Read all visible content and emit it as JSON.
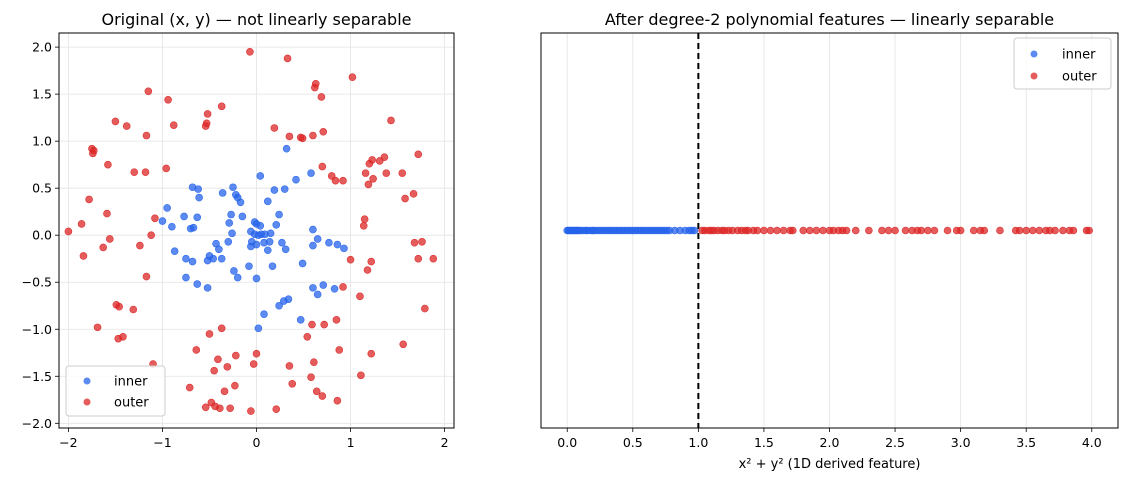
{
  "colors": {
    "inner": "#2563eb",
    "outer": "#dc2626"
  },
  "chart_data": [
    {
      "type": "scatter",
      "title": "Original (x, y) — not linearly separable",
      "xlabel": "",
      "ylabel": "",
      "xlim": [
        -2.1,
        2.1
      ],
      "ylim": [
        -2.05,
        2.15
      ],
      "xticks": [
        -2,
        -1,
        0,
        1,
        2
      ],
      "xtick_labels": [
        "−2",
        "−1",
        "0",
        "1",
        "2"
      ],
      "yticks": [
        -2.0,
        -1.5,
        -1.0,
        -0.5,
        0.0,
        0.5,
        1.0,
        1.5,
        2.0
      ],
      "ytick_labels": [
        "−2.0",
        "−1.5",
        "−1.0",
        "−0.5",
        "0.0",
        "0.5",
        "1.0",
        "1.5",
        "2.0"
      ],
      "grid": true,
      "legend_position": "lower-left",
      "series": [
        {
          "name": "inner",
          "color_key": "inner",
          "points": [
            [
              0.32,
              0.92
            ],
            [
              0.58,
              0.66
            ],
            [
              0.04,
              0.63
            ],
            [
              0.42,
              0.59
            ],
            [
              -0.68,
              0.51
            ],
            [
              -0.62,
              0.49
            ],
            [
              -0.25,
              0.51
            ],
            [
              0.19,
              0.48
            ],
            [
              0.3,
              0.49
            ],
            [
              -0.36,
              0.45
            ],
            [
              -0.22,
              0.43
            ],
            [
              -0.2,
              0.4
            ],
            [
              -0.61,
              0.4
            ],
            [
              -0.17,
              0.35
            ],
            [
              0.12,
              0.36
            ],
            [
              -0.95,
              0.29
            ],
            [
              -0.77,
              0.2
            ],
            [
              -0.63,
              0.19
            ],
            [
              -0.27,
              0.22
            ],
            [
              -0.15,
              0.2
            ],
            [
              0.24,
              0.22
            ],
            [
              -1.0,
              0.15
            ],
            [
              -0.9,
              0.09
            ],
            [
              -0.7,
              0.07
            ],
            [
              -0.67,
              0.08
            ],
            [
              -0.29,
              0.13
            ],
            [
              -0.02,
              0.14
            ],
            [
              0.0,
              0.12
            ],
            [
              0.04,
              0.1
            ],
            [
              0.21,
              0.11
            ],
            [
              0.6,
              0.06
            ],
            [
              -0.26,
              0.02
            ],
            [
              -0.06,
              0.04
            ],
            [
              -0.02,
              0.01
            ],
            [
              0.02,
              0.0
            ],
            [
              0.05,
              0.01
            ],
            [
              0.09,
              0.01
            ],
            [
              0.15,
              0.02
            ],
            [
              0.65,
              -0.04
            ],
            [
              0.77,
              -0.08
            ],
            [
              -0.43,
              -0.09
            ],
            [
              -0.3,
              -0.07
            ],
            [
              -0.05,
              -0.07
            ],
            [
              0.0,
              -0.1
            ],
            [
              0.08,
              -0.08
            ],
            [
              0.14,
              -0.07
            ],
            [
              0.27,
              -0.08
            ],
            [
              0.6,
              -0.11
            ],
            [
              0.86,
              -0.1
            ],
            [
              0.93,
              -0.14
            ],
            [
              -0.87,
              -0.17
            ],
            [
              -0.4,
              -0.15
            ],
            [
              -0.06,
              -0.12
            ],
            [
              0.12,
              -0.16
            ],
            [
              0.31,
              -0.15
            ],
            [
              -0.5,
              -0.22
            ],
            [
              -0.75,
              -0.25
            ],
            [
              -0.68,
              -0.28
            ],
            [
              -0.52,
              -0.27
            ],
            [
              -0.46,
              -0.25
            ],
            [
              -0.37,
              -0.25
            ],
            [
              0.49,
              -0.3
            ],
            [
              -0.24,
              -0.38
            ],
            [
              -0.08,
              -0.33
            ],
            [
              0.17,
              -0.33
            ],
            [
              -0.75,
              -0.45
            ],
            [
              -0.2,
              -0.45
            ],
            [
              0.0,
              -0.46
            ],
            [
              0.71,
              -0.53
            ],
            [
              -0.63,
              -0.52
            ],
            [
              -0.52,
              -0.56
            ],
            [
              0.6,
              -0.56
            ],
            [
              0.83,
              -0.57
            ],
            [
              0.65,
              -0.63
            ],
            [
              0.29,
              -0.7
            ],
            [
              0.34,
              -0.68
            ],
            [
              0.24,
              -0.75
            ],
            [
              0.08,
              -0.84
            ],
            [
              0.47,
              -0.9
            ],
            [
              0.02,
              -0.99
            ]
          ]
        },
        {
          "name": "outer",
          "color_key": "outer",
          "points": [
            [
              -0.07,
              1.95
            ],
            [
              0.33,
              1.88
            ],
            [
              1.02,
              1.68
            ],
            [
              0.63,
              1.61
            ],
            [
              -1.15,
              1.53
            ],
            [
              0.62,
              1.57
            ],
            [
              0.69,
              1.47
            ],
            [
              -0.94,
              1.44
            ],
            [
              -0.37,
              1.37
            ],
            [
              -0.52,
              1.29
            ],
            [
              1.43,
              1.22
            ],
            [
              -1.5,
              1.21
            ],
            [
              -1.38,
              1.16
            ],
            [
              -0.54,
              1.16
            ],
            [
              -0.53,
              1.19
            ],
            [
              -0.88,
              1.17
            ],
            [
              0.19,
              1.14
            ],
            [
              0.71,
              1.1
            ],
            [
              0.6,
              1.06
            ],
            [
              0.35,
              1.05
            ],
            [
              0.47,
              1.04
            ],
            [
              0.49,
              1.03
            ],
            [
              -1.17,
              1.06
            ],
            [
              -1.75,
              0.92
            ],
            [
              -1.73,
              0.9
            ],
            [
              -1.74,
              0.87
            ],
            [
              1.72,
              0.86
            ],
            [
              1.36,
              0.83
            ],
            [
              1.23,
              0.8
            ],
            [
              1.2,
              0.76
            ],
            [
              1.31,
              0.79
            ],
            [
              -1.58,
              0.75
            ],
            [
              0.7,
              0.73
            ],
            [
              -0.96,
              0.71
            ],
            [
              1.55,
              0.66
            ],
            [
              1.16,
              0.66
            ],
            [
              1.38,
              0.66
            ],
            [
              -1.3,
              0.67
            ],
            [
              -1.18,
              0.67
            ],
            [
              1.24,
              0.6
            ],
            [
              0.84,
              0.58
            ],
            [
              0.92,
              0.58
            ],
            [
              1.19,
              0.54
            ],
            [
              0.8,
              0.63
            ],
            [
              1.67,
              0.44
            ],
            [
              -1.78,
              0.38
            ],
            [
              1.58,
              0.39
            ],
            [
              -1.59,
              0.23
            ],
            [
              -1.08,
              0.18
            ],
            [
              1.15,
              0.17
            ],
            [
              -1.86,
              0.12
            ],
            [
              1.14,
              0.1
            ],
            [
              -2.0,
              0.04
            ],
            [
              -1.12,
              0.0
            ],
            [
              -1.56,
              -0.04
            ],
            [
              1.68,
              -0.08
            ],
            [
              1.76,
              -0.07
            ],
            [
              -1.24,
              -0.11
            ],
            [
              -1.63,
              -0.13
            ],
            [
              -1.84,
              -0.22
            ],
            [
              1.0,
              -0.26
            ],
            [
              1.88,
              -0.25
            ],
            [
              1.72,
              -0.25
            ],
            [
              1.22,
              -0.28
            ],
            [
              1.18,
              -0.37
            ],
            [
              -1.17,
              -0.44
            ],
            [
              0.92,
              -0.55
            ],
            [
              1.1,
              -0.65
            ],
            [
              -1.49,
              -0.74
            ],
            [
              -1.46,
              -0.76
            ],
            [
              -1.31,
              -0.79
            ],
            [
              1.79,
              -0.78
            ],
            [
              0.85,
              -0.9
            ],
            [
              0.59,
              -0.95
            ],
            [
              0.72,
              -0.95
            ],
            [
              -1.69,
              -0.98
            ],
            [
              -0.37,
              -0.99
            ],
            [
              -0.5,
              -1.05
            ],
            [
              -1.47,
              -1.1
            ],
            [
              -1.42,
              -1.08
            ],
            [
              0.54,
              -1.08
            ],
            [
              1.56,
              -1.16
            ],
            [
              -0.64,
              -1.22
            ],
            [
              0.88,
              -1.22
            ],
            [
              -0.22,
              -1.28
            ],
            [
              -0.41,
              -1.32
            ],
            [
              1.22,
              -1.26
            ],
            [
              0.0,
              -1.26
            ],
            [
              -1.1,
              -1.37
            ],
            [
              0.61,
              -1.35
            ],
            [
              -0.03,
              -1.37
            ],
            [
              -0.31,
              -1.4
            ],
            [
              0.35,
              -1.39
            ],
            [
              -0.45,
              -1.44
            ],
            [
              1.11,
              -1.49
            ],
            [
              0.58,
              -1.51
            ],
            [
              0.38,
              -1.58
            ],
            [
              -0.23,
              -1.6
            ],
            [
              -0.71,
              -1.62
            ],
            [
              -0.34,
              -1.66
            ],
            [
              0.64,
              -1.66
            ],
            [
              0.7,
              -1.71
            ],
            [
              0.86,
              -1.76
            ],
            [
              -0.48,
              -1.78
            ],
            [
              -0.44,
              -1.82
            ],
            [
              -0.54,
              -1.83
            ],
            [
              -0.39,
              -1.84
            ],
            [
              -0.28,
              -1.84
            ],
            [
              0.21,
              -1.85
            ],
            [
              -0.06,
              -1.87
            ]
          ]
        }
      ]
    },
    {
      "type": "scatter",
      "title": "After degree-2 polynomial features — linearly separable",
      "xlabel": "x² + y²  (1D derived feature)",
      "ylabel": "",
      "xlim": [
        -0.2,
        4.2
      ],
      "ylim": [
        -1,
        1
      ],
      "xticks": [
        0.0,
        0.5,
        1.0,
        1.5,
        2.0,
        2.5,
        3.0,
        3.5,
        4.0
      ],
      "xtick_labels": [
        "0.0",
        "0.5",
        "1.0",
        "1.5",
        "2.0",
        "2.5",
        "3.0",
        "3.5",
        "4.0"
      ],
      "grid": true,
      "grid_axis": "x",
      "legend_position": "top-right",
      "threshold": 1.0,
      "series": [
        {
          "name": "inner",
          "color_key": "inner",
          "x": [
            0.0,
            0.01,
            0.02,
            0.03,
            0.04,
            0.05,
            0.06,
            0.07,
            0.08,
            0.09,
            0.1,
            0.12,
            0.14,
            0.15,
            0.17,
            0.19,
            0.2,
            0.22,
            0.24,
            0.26,
            0.28,
            0.3,
            0.32,
            0.34,
            0.36,
            0.38,
            0.4,
            0.42,
            0.44,
            0.46,
            0.48,
            0.5,
            0.52,
            0.54,
            0.56,
            0.58,
            0.6,
            0.62,
            0.64,
            0.66,
            0.68,
            0.7,
            0.72,
            0.74,
            0.76,
            0.78,
            0.82,
            0.86,
            0.9,
            0.93,
            0.95,
            0.97
          ]
        },
        {
          "name": "outer",
          "color_key": "outer",
          "x": [
            1.03,
            1.05,
            1.08,
            1.1,
            1.12,
            1.15,
            1.18,
            1.2,
            1.23,
            1.26,
            1.3,
            1.33,
            1.36,
            1.38,
            1.42,
            1.45,
            1.5,
            1.55,
            1.6,
            1.65,
            1.7,
            1.72,
            1.8,
            1.85,
            1.9,
            1.95,
            2.0,
            2.03,
            2.07,
            2.1,
            2.13,
            2.2,
            2.3,
            2.4,
            2.45,
            2.5,
            2.58,
            2.63,
            2.67,
            2.7,
            2.75,
            2.8,
            2.9,
            2.97,
            3.0,
            3.1,
            3.15,
            3.18,
            3.3,
            3.42,
            3.45,
            3.5,
            3.55,
            3.6,
            3.65,
            3.68,
            3.72,
            3.78,
            3.83,
            3.86,
            3.96,
            3.98
          ]
        }
      ]
    }
  ]
}
